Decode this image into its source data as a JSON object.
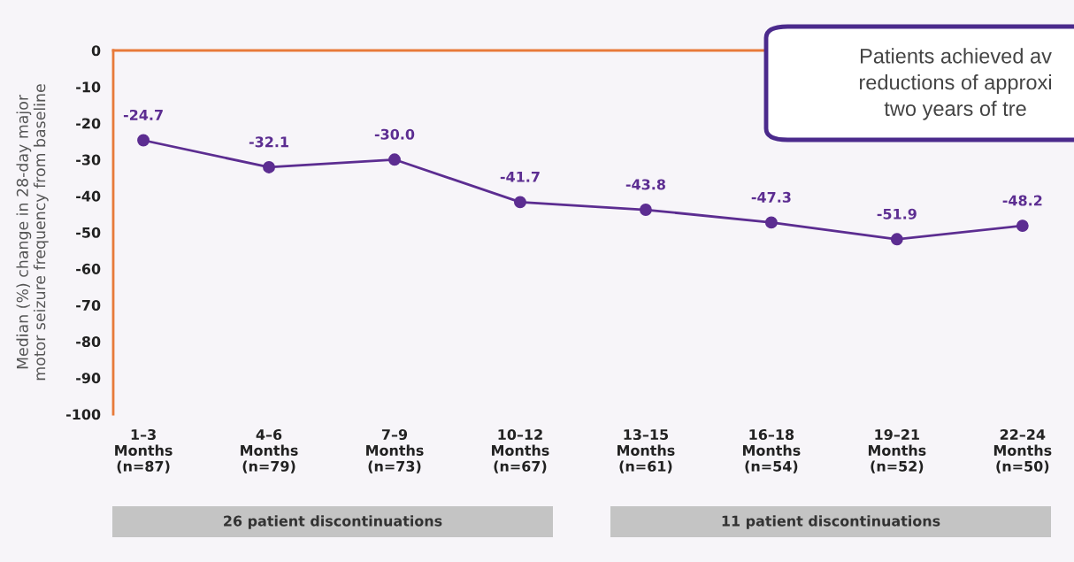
{
  "chart_data": {
    "type": "line",
    "ylabel": "Median (%) change in 28-day major\nmotor seizure frequency from baseline",
    "categories": [
      "1–3\nMonths\n(n=87)",
      "4–6\nMonths\n(n=79)",
      "7–9\nMonths\n(n=73)",
      "10–12\nMonths\n(n=67)",
      "13–15\nMonths\n(n=61)",
      "16–18\nMonths\n(n=54)",
      "19–21\nMonths\n(n=52)",
      "22–24\nMonths\n(n=50)"
    ],
    "series": [
      {
        "color": "#5c2d91",
        "values": [
          -24.7,
          -32.1,
          -30.0,
          -41.7,
          -43.8,
          -47.3,
          -51.9,
          -48.2
        ]
      }
    ],
    "ylim": [
      -100,
      0
    ],
    "yticks": [
      0,
      -10,
      -20,
      -30,
      -40,
      -50,
      -60,
      -70,
      -80,
      -90,
      -100
    ],
    "value_labels": [
      "-24.7",
      "-32.1",
      "-30.0",
      "-41.7",
      "-43.8",
      "-47.3",
      "-51.9",
      "-48.2"
    ],
    "marker": "circle",
    "line_style": "solid",
    "grid": false,
    "legend": false,
    "annotations": [
      "Patients achieved av\nreductions of approxi\ntwo years of tre",
      "26 patient discontinuations",
      "11 patient discontinuations"
    ]
  }
}
